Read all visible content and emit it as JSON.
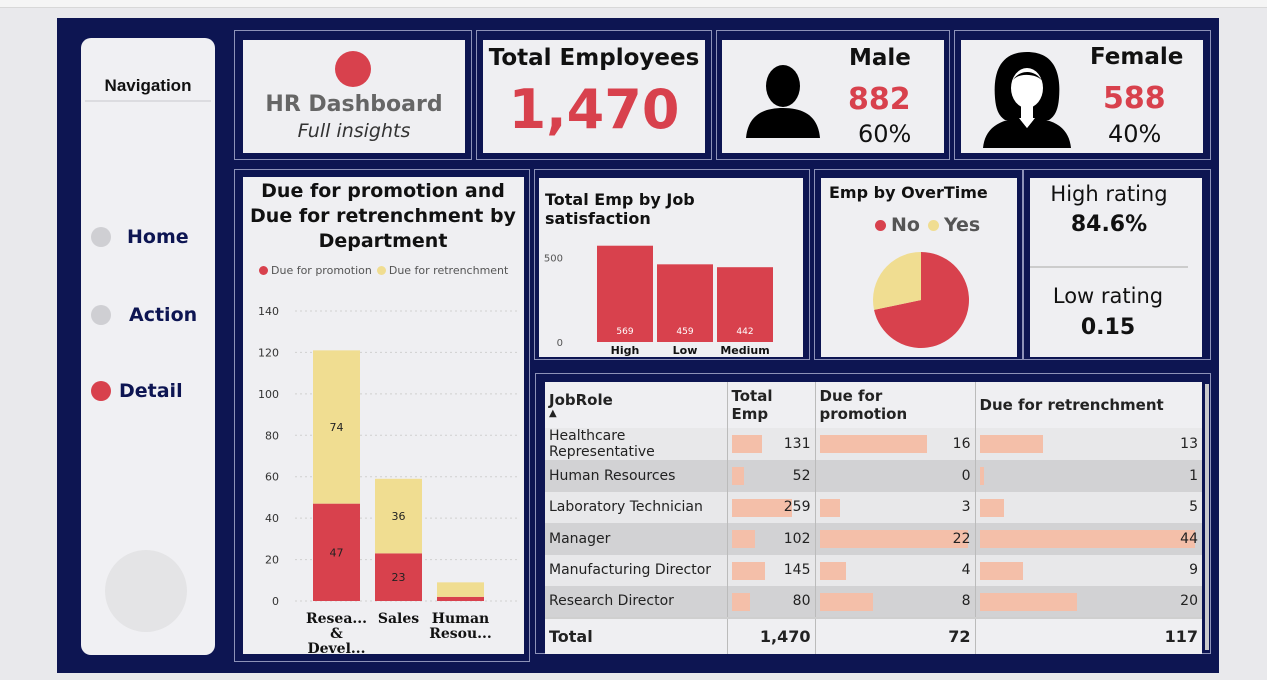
{
  "nav": {
    "title": "Navigation",
    "items": [
      {
        "label": "Home",
        "active": false
      },
      {
        "label": "Action",
        "active": false
      },
      {
        "label": "Detail",
        "active": true
      }
    ]
  },
  "header": {
    "title": "HR Dashboard",
    "subtitle": "Full insights"
  },
  "kpis": {
    "total": {
      "label": "Total Employees",
      "value": "1,470"
    },
    "male": {
      "label": "Male",
      "value": "882",
      "pct": "60%",
      "icon": "male-user-icon"
    },
    "female": {
      "label": "Female",
      "value": "588",
      "pct": "40%",
      "icon": "female-user-icon"
    },
    "high_rating": {
      "label": "High rating",
      "value": "84.6%"
    },
    "low_rating": {
      "label": "Low rating",
      "value": "0.15"
    }
  },
  "colors": {
    "red": "#d8414d",
    "yellow": "#f0dd91",
    "navy": "#0d1552",
    "barpink": "#f4bfa9"
  },
  "chart_data": [
    {
      "type": "bar",
      "stacked": true,
      "title": "Due for promotion and Due for retrenchment by Department",
      "legend": [
        "Due for promotion",
        "Due for retrenchment"
      ],
      "categories": [
        "Resea... & Devel...",
        "Sales",
        "Human Resou..."
      ],
      "series": [
        {
          "name": "Due for promotion",
          "values": [
            47,
            23,
            2
          ],
          "color": "#d8414d"
        },
        {
          "name": "Due for retrenchment",
          "values": [
            74,
            36,
            7
          ],
          "color": "#f0dd91"
        }
      ],
      "data_labels": [
        [
          "47",
          "23",
          ""
        ],
        [
          "74",
          "36",
          ""
        ]
      ],
      "ylim": [
        0,
        140
      ],
      "yticks": [
        "0",
        "20",
        "40",
        "60",
        "80",
        "100",
        "120",
        "140"
      ],
      "grid": true
    },
    {
      "type": "bar",
      "title": "Total Emp by Job satisfaction",
      "categories": [
        "High",
        "Low",
        "Medium"
      ],
      "values": [
        569,
        459,
        442
      ],
      "data_labels": [
        "569",
        "459",
        "442"
      ],
      "xlabel": "Job satisfaction",
      "yticks": [
        "0",
        "500"
      ],
      "ylim": [
        0,
        650
      ]
    },
    {
      "type": "pie",
      "title": "Emp by OverTime",
      "legend": [
        "No",
        "Yes"
      ],
      "values": [
        1054,
        416
      ],
      "colors": [
        "#d8414d",
        "#f0dd91"
      ]
    }
  ],
  "table": {
    "headers": [
      "JobRole",
      "Total Emp",
      "Due for promotion",
      "Due for retrenchment"
    ],
    "sort_icon": "sort-up-icon",
    "rows": [
      {
        "role": "Healthcare Representative",
        "total": "131",
        "promo": "16",
        "retr": "13",
        "t": 131,
        "p": 16,
        "r": 13
      },
      {
        "role": "Human Resources",
        "total": "52",
        "promo": "0",
        "retr": "1",
        "t": 52,
        "p": 0,
        "r": 1
      },
      {
        "role": "Laboratory Technician",
        "total": "259",
        "promo": "3",
        "retr": "5",
        "t": 259,
        "p": 3,
        "r": 5
      },
      {
        "role": "Manager",
        "total": "102",
        "promo": "22",
        "retr": "44",
        "t": 102,
        "p": 22,
        "r": 44
      },
      {
        "role": "Manufacturing Director",
        "total": "145",
        "promo": "4",
        "retr": "9",
        "t": 145,
        "p": 4,
        "r": 9
      },
      {
        "role": "Research Director",
        "total": "80",
        "promo": "8",
        "retr": "20",
        "t": 80,
        "p": 8,
        "r": 20
      }
    ],
    "totals": {
      "label": "Total",
      "total": "1,470",
      "promo": "72",
      "retr": "117"
    }
  }
}
